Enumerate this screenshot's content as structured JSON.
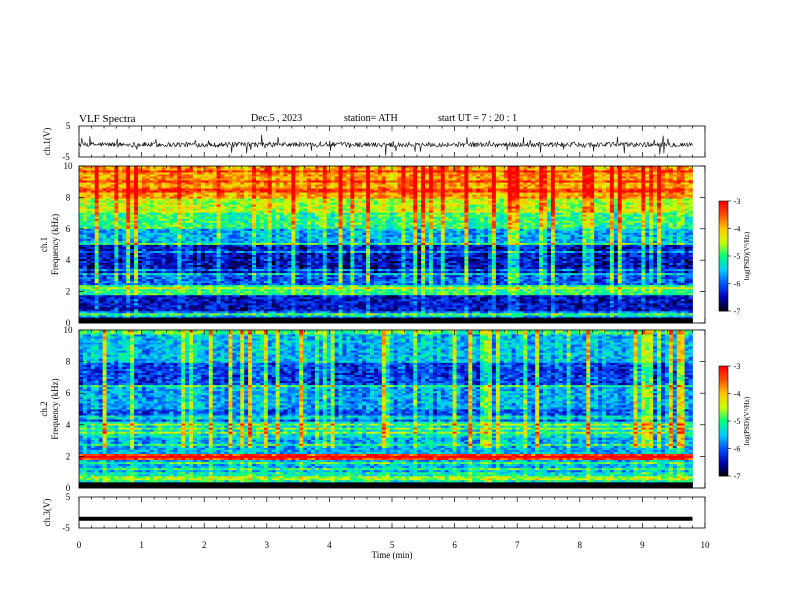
{
  "header": {
    "title": "VLF  Spectra",
    "date": "Dec.5  , 2023",
    "station": "station= ATH",
    "start": "start  UT  =   7  : 20 : 1"
  },
  "chart_data": [
    {
      "type": "line",
      "panel": "ch1-waveform",
      "ylabel": "ch.1(V)",
      "yticks": [
        "5",
        "-5"
      ],
      "ylim": [
        -5,
        5
      ],
      "xlim": [
        0,
        10
      ],
      "note_values": "noisy waveform centred near -1 V with spikes",
      "center": -1,
      "amplitude": 0.8
    },
    {
      "type": "heatmap",
      "panel": "ch1-spectrogram",
      "ylabel_top": "ch.1",
      "ylabel": "Frequency  (kHz)",
      "yticks": [
        "0",
        "2",
        "4",
        "6",
        "8",
        "10"
      ],
      "ylim": [
        0,
        10
      ],
      "xlim": [
        0,
        9.8
      ],
      "colorbar": {
        "label": "log(PSD)(V²/Hz)",
        "ticks": [
          "-3",
          "-4",
          "-5",
          "-6",
          "-7"
        ],
        "range": [
          -7,
          -3
        ]
      },
      "bands_khz_level": [
        [
          0,
          0.35,
          -7.2
        ],
        [
          0.35,
          0.7,
          -5.5
        ],
        [
          0.7,
          1.8,
          -6.4
        ],
        [
          1.8,
          2.4,
          -5.0
        ],
        [
          2.4,
          3.2,
          -6.0
        ],
        [
          3.2,
          5.0,
          -6.4
        ],
        [
          5.0,
          6.0,
          -5.6
        ],
        [
          6.0,
          7.0,
          -5.0
        ],
        [
          7.0,
          8.0,
          -4.5
        ],
        [
          8.0,
          10.0,
          -3.9
        ]
      ]
    },
    {
      "type": "heatmap",
      "panel": "ch2-spectrogram",
      "ylabel_top": "ch.2",
      "ylabel": "Frequency  (kHz)",
      "yticks": [
        "0",
        "2",
        "4",
        "6",
        "8",
        "10"
      ],
      "ylim": [
        0,
        10
      ],
      "xlim": [
        0,
        9.8
      ],
      "colorbar": {
        "label": "log(PSD)(V²/Hz)",
        "ticks": [
          "-3",
          "-4",
          "-5",
          "-6",
          "-7"
        ],
        "range": [
          -7,
          -3
        ]
      },
      "bands_khz_level": [
        [
          0,
          0.35,
          -7.2
        ],
        [
          0.35,
          1.0,
          -5.2
        ],
        [
          1.0,
          1.8,
          -5.6
        ],
        [
          1.8,
          2.2,
          -3.4
        ],
        [
          2.2,
          3.2,
          -5.6
        ],
        [
          3.2,
          4.2,
          -5.3
        ],
        [
          4.2,
          5.0,
          -6.0
        ],
        [
          5.0,
          6.5,
          -5.6
        ],
        [
          6.5,
          8.0,
          -6.1
        ],
        [
          8.0,
          10.0,
          -5.5
        ]
      ]
    },
    {
      "type": "line",
      "panel": "ch3-waveform",
      "ylabel": "ch.3(V)",
      "yticks": [
        "5",
        "-5"
      ],
      "ylim": [
        -5,
        5
      ],
      "xlim": [
        0,
        10
      ],
      "constant_value": -2,
      "xlabel": "Time  (min)",
      "xticks": [
        "0",
        "1",
        "2",
        "3",
        "4",
        "5",
        "6",
        "7",
        "8",
        "9",
        "10"
      ]
    }
  ],
  "colors": {
    "scale": [
      "#000000",
      "#0000b4",
      "#0050ff",
      "#00c8ff",
      "#00ff80",
      "#c8ff00",
      "#ffc800",
      "#ff5000",
      "#ff0000",
      "#ffffff"
    ]
  }
}
